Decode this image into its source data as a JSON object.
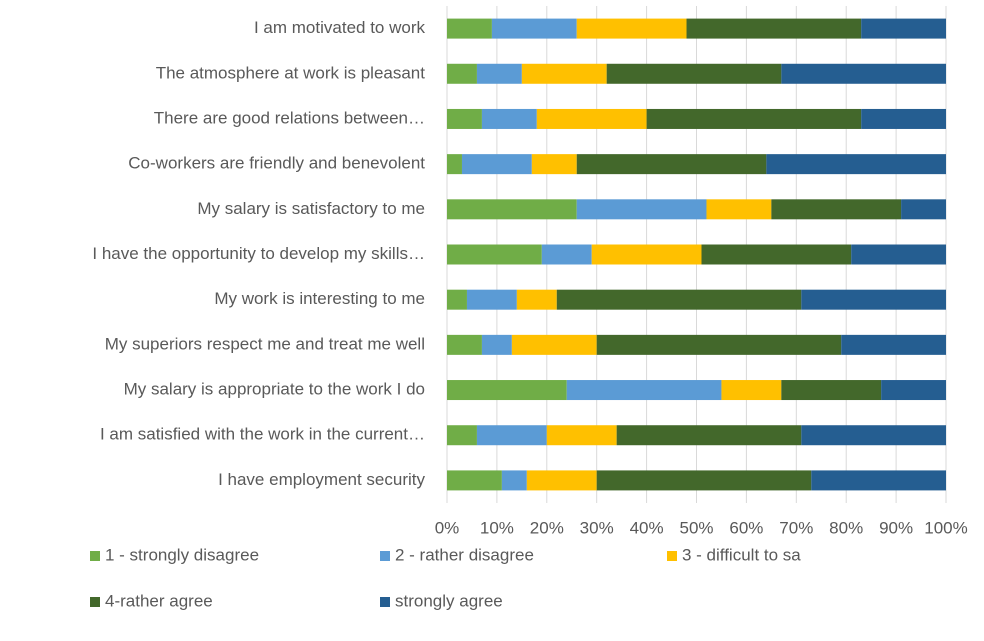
{
  "chart_data": {
    "type": "bar",
    "orientation": "horizontal",
    "stacked": true,
    "categories": [
      "I am motivated to work",
      "The atmosphere at work is pleasant",
      "There are good relations between…",
      "Co-workers are friendly and benevolent",
      "My salary is satisfactory to me",
      "I have the opportunity to develop my skills…",
      "My work is interesting to me",
      "My superiors respect me and treat me well",
      "My salary is appropriate to the work I do",
      "I am satisfied with the work in the current…",
      "I have employment security"
    ],
    "series": [
      {
        "name": "1 - strongly disagree",
        "color": "#70ad47",
        "values": [
          9,
          6,
          7,
          3,
          26,
          19,
          4,
          7,
          24,
          6,
          11
        ]
      },
      {
        "name": "2 - rather disagree",
        "color": "#5b9bd5",
        "values": [
          17,
          9,
          11,
          14,
          26,
          10,
          10,
          6,
          31,
          14,
          5
        ]
      },
      {
        "name": "3 - difficult to sa",
        "color": "#ffc000",
        "values": [
          22,
          17,
          22,
          9,
          13,
          22,
          8,
          17,
          12,
          14,
          14
        ]
      },
      {
        "name": "4-rather agree",
        "color": "#43682b",
        "values": [
          35,
          35,
          43,
          38,
          26,
          30,
          49,
          49,
          20,
          37,
          43
        ]
      },
      {
        "name": "strongly agree",
        "color": "#255e91",
        "values": [
          17,
          33,
          17,
          36,
          9,
          19,
          29,
          21,
          13,
          29,
          27
        ]
      }
    ],
    "xlim": [
      0,
      100
    ],
    "xticks": [
      {
        "value": 0,
        "label": "0%"
      },
      {
        "value": 10,
        "label": "10%"
      },
      {
        "value": 20,
        "label": "20%"
      },
      {
        "value": 30,
        "label": "30%"
      },
      {
        "value": 40,
        "label": "40%"
      },
      {
        "value": 50,
        "label": "50%"
      },
      {
        "value": 60,
        "label": "60%"
      },
      {
        "value": 70,
        "label": "70%"
      },
      {
        "value": 80,
        "label": "80%"
      },
      {
        "value": 90,
        "label": "90%"
      },
      {
        "value": 100,
        "label": "100%"
      }
    ],
    "grid": true,
    "legend": "bottom"
  }
}
